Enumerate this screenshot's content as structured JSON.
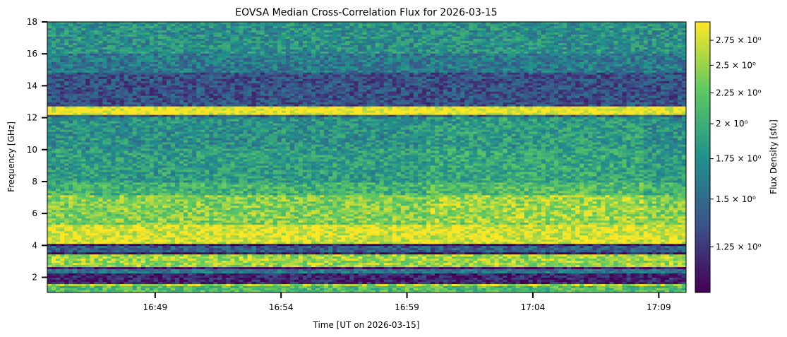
{
  "chart_data": {
    "type": "heatmap",
    "title": "EOVSA Median Cross-Correlation Flux for 2026-03-15",
    "xlabel": "Time [UT on 2026-03-15]",
    "ylabel": "Frequency [GHz]",
    "colorbar_label": "Flux Density [sfu]",
    "colormap": "viridis",
    "colors": [
      "#440154",
      "#3b528b",
      "#21918c",
      "#5ec962",
      "#fde725"
    ],
    "color_scale": "log",
    "x_range": [
      "16:44:43",
      "17:10:05"
    ],
    "x_ticks": [
      "16:49",
      "16:54",
      "16:59",
      "17:04",
      "17:09"
    ],
    "y_range": [
      1.05,
      18.0
    ],
    "y_ticks": [
      "2",
      "4",
      "6",
      "8",
      "10",
      "12",
      "14",
      "16",
      "18"
    ],
    "y_tick_values": [
      2,
      4,
      6,
      8,
      10,
      12,
      14,
      16,
      18
    ],
    "colorbar_range": [
      1.05,
      2.95
    ],
    "colorbar_ticks": [
      {
        "value": 1.25,
        "label": "1.25 × 10⁰"
      },
      {
        "value": 1.5,
        "label": "1.5 × 10⁰"
      },
      {
        "value": 1.75,
        "label": "1.75 × 10⁰"
      },
      {
        "value": 2.0,
        "label": "2 × 10⁰"
      },
      {
        "value": 2.25,
        "label": "2.25 × 10⁰"
      },
      {
        "value": 2.5,
        "label": "2.5 × 10⁰"
      },
      {
        "value": 2.75,
        "label": "2.75 × 10⁰"
      }
    ],
    "frequency_profile": [
      {
        "f_lo": 1.05,
        "f_hi": 1.4,
        "level": 0.7
      },
      {
        "f_lo": 1.4,
        "f_hi": 1.6,
        "level": 0.85
      },
      {
        "f_lo": 1.6,
        "f_hi": 2.3,
        "level": 0.1
      },
      {
        "f_lo": 2.3,
        "f_hi": 2.5,
        "level": 0.4
      },
      {
        "f_lo": 2.5,
        "f_hi": 2.7,
        "level": 0.05
      },
      {
        "f_lo": 2.7,
        "f_hi": 3.4,
        "level": 0.85
      },
      {
        "f_lo": 3.4,
        "f_hi": 3.6,
        "level": 0.05
      },
      {
        "f_lo": 3.6,
        "f_hi": 3.9,
        "level": 0.3
      },
      {
        "f_lo": 3.9,
        "f_hi": 4.1,
        "level": 0.05
      },
      {
        "f_lo": 4.1,
        "f_hi": 5.25,
        "level": 0.95
      },
      {
        "f_lo": 5.25,
        "f_hi": 5.35,
        "level": 0.0
      },
      {
        "f_lo": 5.35,
        "f_hi": 7.2,
        "level": 0.8
      },
      {
        "f_lo": 7.2,
        "f_hi": 8.0,
        "level": 0.65
      },
      {
        "f_lo": 8.0,
        "f_hi": 10.0,
        "level": 0.55
      },
      {
        "f_lo": 10.0,
        "f_hi": 12.0,
        "level": 0.5
      },
      {
        "f_lo": 12.0,
        "f_hi": 12.2,
        "level": 0.3
      },
      {
        "f_lo": 12.2,
        "f_hi": 12.7,
        "level": 1.0
      },
      {
        "f_lo": 12.7,
        "f_hi": 14.8,
        "level": 0.25
      },
      {
        "f_lo": 14.8,
        "f_hi": 16.0,
        "level": 0.4
      },
      {
        "f_lo": 16.0,
        "f_hi": 18.0,
        "level": 0.5
      }
    ]
  }
}
